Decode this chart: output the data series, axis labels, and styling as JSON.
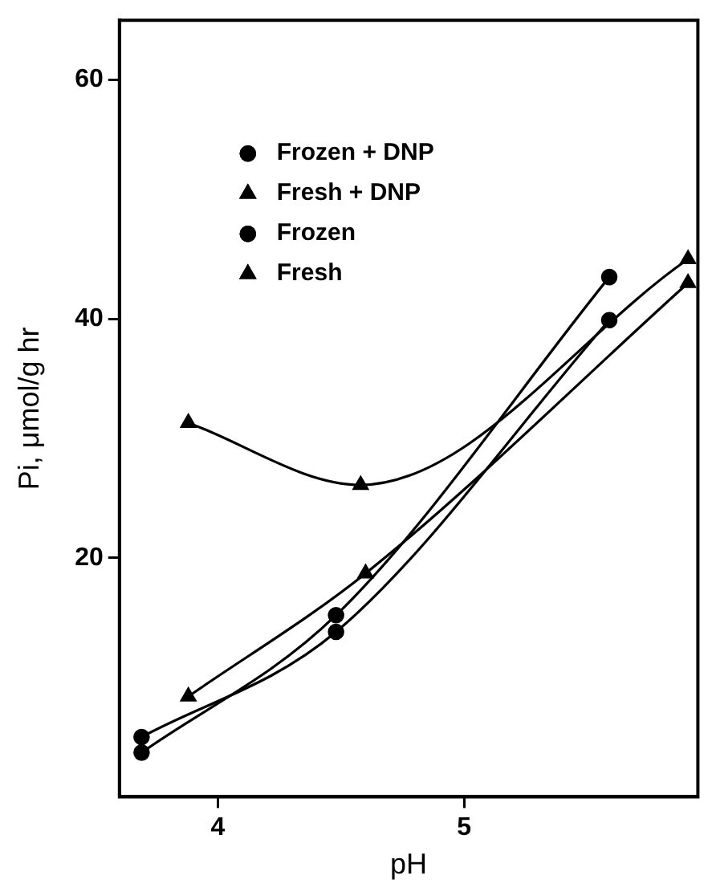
{
  "chart_data": {
    "type": "line",
    "xlabel": "pH",
    "ylabel": "Pi, μmol/g hr",
    "xlim": [
      3.6,
      5.95
    ],
    "ylim": [
      0,
      65
    ],
    "xticks": [
      4,
      5
    ],
    "yticks": [
      20,
      40,
      60
    ],
    "grid": false,
    "legend": "top left",
    "line_style": "solid",
    "series": [
      {
        "name": "Frozen + DNP",
        "color": "#000000",
        "marker": "circle",
        "x": [
          3.69,
          4.48,
          5.59
        ],
        "values": [
          5.0,
          13.8,
          39.9
        ]
      },
      {
        "name": "Fresh + DNP",
        "color": "#000000",
        "marker": "triangle",
        "x": [
          3.88,
          4.58,
          5.91
        ],
        "values": [
          31.3,
          26.1,
          45.0
        ]
      },
      {
        "name": "Frozen",
        "color": "#000000",
        "marker": "circle",
        "x": [
          3.69,
          4.48,
          5.59
        ],
        "values": [
          3.7,
          15.2,
          43.5
        ]
      },
      {
        "name": "Fresh",
        "color": "#000000",
        "marker": "triangle",
        "x": [
          3.88,
          4.6,
          5.91
        ],
        "values": [
          8.4,
          18.7,
          43.0
        ]
      }
    ]
  }
}
